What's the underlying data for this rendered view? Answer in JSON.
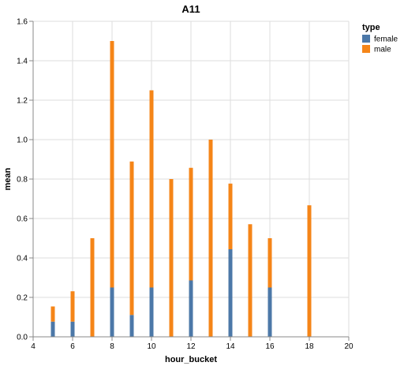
{
  "chart_data": {
    "type": "bar",
    "stacked": true,
    "title": "A11",
    "xlabel": "hour_bucket",
    "ylabel": "mean",
    "xlim": [
      4,
      20
    ],
    "ylim": [
      0,
      1.6
    ],
    "x_ticks": [
      "4",
      "6",
      "8",
      "10",
      "12",
      "14",
      "16",
      "18",
      "20"
    ],
    "y_ticks": [
      "0.0",
      "0.2",
      "0.4",
      "0.6",
      "0.8",
      "1.0",
      "1.2",
      "1.4",
      "1.6"
    ],
    "grid": true,
    "legend": {
      "title": "type",
      "placement": "top-right",
      "entries": [
        "female",
        "male"
      ]
    },
    "x": [
      5,
      6,
      7,
      8,
      9,
      10,
      11,
      12,
      13,
      14,
      15,
      16,
      18
    ],
    "series": [
      {
        "name": "female",
        "color": "#4c78a8",
        "values": [
          0.077,
          0.077,
          0,
          0.25,
          0.111,
          0.25,
          0,
          0.286,
          0,
          0.444,
          0,
          0.25,
          0
        ]
      },
      {
        "name": "male",
        "color": "#f58518",
        "values": [
          0.077,
          0.154,
          0.5,
          1.25,
          0.778,
          1.0,
          0.8,
          0.571,
          1.0,
          0.333,
          0.571,
          0.25,
          0.667
        ]
      }
    ]
  }
}
